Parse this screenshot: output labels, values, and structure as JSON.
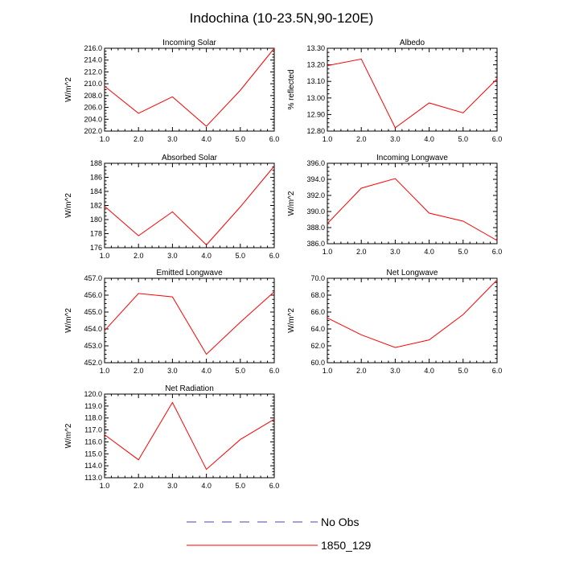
{
  "figure": {
    "title": "Indochina (10-23.5N,90-120E)"
  },
  "chart_data": [
    {
      "type": "line",
      "title": "Incoming Solar",
      "xlabel": "",
      "ylabel": "W/m^2",
      "x": [
        1,
        2,
        3,
        4,
        5,
        6
      ],
      "xlim": [
        1,
        6
      ],
      "xticks": [
        "1.0",
        "2.0",
        "3.0",
        "4.0",
        "5.0",
        "6.0"
      ],
      "ylim": [
        202,
        216
      ],
      "yticks": [
        "202.0",
        "204.0",
        "206.0",
        "208.0",
        "210.0",
        "212.0",
        "214.0",
        "216.0"
      ],
      "series": [
        {
          "name": "1850_129",
          "color": "#ff0000",
          "values": [
            209.6,
            205.0,
            207.8,
            202.8,
            208.9,
            216.0
          ]
        }
      ]
    },
    {
      "type": "line",
      "title": "Albedo",
      "xlabel": "",
      "ylabel": "% reflected",
      "x": [
        1,
        2,
        3,
        4,
        5,
        6
      ],
      "xlim": [
        1,
        6
      ],
      "xticks": [
        "1.0",
        "2.0",
        "3.0",
        "4.0",
        "5.0",
        "6.0"
      ],
      "ylim": [
        12.8,
        13.3
      ],
      "yticks": [
        "12.80",
        "12.90",
        "13.00",
        "13.10",
        "13.20",
        "13.30"
      ],
      "series": [
        {
          "name": "1850_129",
          "color": "#ff0000",
          "values": [
            13.195,
            13.235,
            12.82,
            12.97,
            12.91,
            13.115
          ]
        }
      ]
    },
    {
      "type": "line",
      "title": "Absorbed Solar",
      "xlabel": "",
      "ylabel": "W/m^2",
      "x": [
        1,
        2,
        3,
        4,
        5,
        6
      ],
      "xlim": [
        1,
        6
      ],
      "xticks": [
        "1.0",
        "2.0",
        "3.0",
        "4.0",
        "5.0",
        "6.0"
      ],
      "ylim": [
        176,
        188
      ],
      "yticks": [
        "176",
        "178",
        "180",
        "182",
        "184",
        "186",
        "188"
      ],
      "series": [
        {
          "name": "1850_129",
          "color": "#ff0000",
          "values": [
            181.9,
            177.7,
            181.1,
            176.4,
            181.8,
            187.6
          ]
        }
      ]
    },
    {
      "type": "line",
      "title": "Incoming Longwave",
      "xlabel": "",
      "ylabel": "W/m^2",
      "x": [
        1,
        2,
        3,
        4,
        5,
        6
      ],
      "xlim": [
        1,
        6
      ],
      "xticks": [
        "1.0",
        "2.0",
        "3.0",
        "4.0",
        "5.0",
        "6.0"
      ],
      "ylim": [
        386,
        396
      ],
      "yticks": [
        "386.0",
        "388.0",
        "390.0",
        "392.0",
        "394.0",
        "396.0"
      ],
      "series": [
        {
          "name": "1850_129",
          "color": "#ff0000",
          "values": [
            388.5,
            392.9,
            394.1,
            389.8,
            388.8,
            386.4
          ]
        }
      ]
    },
    {
      "type": "line",
      "title": "Emitted Longwave",
      "xlabel": "",
      "ylabel": "W/m^2",
      "x": [
        1,
        2,
        3,
        4,
        5,
        6
      ],
      "xlim": [
        1,
        6
      ],
      "xticks": [
        "1.0",
        "2.0",
        "3.0",
        "4.0",
        "5.0",
        "6.0"
      ],
      "ylim": [
        452,
        457
      ],
      "yticks": [
        "452.0",
        "453.0",
        "454.0",
        "455.0",
        "456.0",
        "457.0"
      ],
      "series": [
        {
          "name": "1850_129",
          "color": "#ff0000",
          "values": [
            453.9,
            456.1,
            455.9,
            452.5,
            454.4,
            456.2
          ]
        }
      ]
    },
    {
      "type": "line",
      "title": "Net Longwave",
      "xlabel": "",
      "ylabel": "W/m^2",
      "x": [
        1,
        2,
        3,
        4,
        5,
        6
      ],
      "xlim": [
        1,
        6
      ],
      "xticks": [
        "1.0",
        "2.0",
        "3.0",
        "4.0",
        "5.0",
        "6.0"
      ],
      "ylim": [
        60,
        70
      ],
      "yticks": [
        "60.0",
        "62.0",
        "64.0",
        "66.0",
        "68.0",
        "70.0"
      ],
      "series": [
        {
          "name": "1850_129",
          "color": "#ff0000",
          "values": [
            65.3,
            63.3,
            61.8,
            62.7,
            65.7,
            69.8
          ]
        }
      ]
    },
    {
      "type": "line",
      "title": "Net Radiation",
      "xlabel": "",
      "ylabel": "W/m^2",
      "x": [
        1,
        2,
        3,
        4,
        5,
        6
      ],
      "xlim": [
        1,
        6
      ],
      "xticks": [
        "1.0",
        "2.0",
        "3.0",
        "4.0",
        "5.0",
        "6.0"
      ],
      "ylim": [
        113,
        120
      ],
      "yticks": [
        "113.0",
        "114.0",
        "115.0",
        "116.0",
        "117.0",
        "118.0",
        "119.0",
        "120.0"
      ],
      "series": [
        {
          "name": "1850_129",
          "color": "#ff0000",
          "values": [
            116.6,
            114.5,
            119.3,
            113.7,
            116.2,
            117.9
          ]
        }
      ]
    }
  ],
  "legend": {
    "placement": "bottom-center",
    "entries": [
      {
        "label": "No Obs",
        "color": "#4444aa",
        "style": "dashed"
      },
      {
        "label": "1850_129",
        "color": "#ff0000",
        "style": "solid"
      }
    ]
  }
}
